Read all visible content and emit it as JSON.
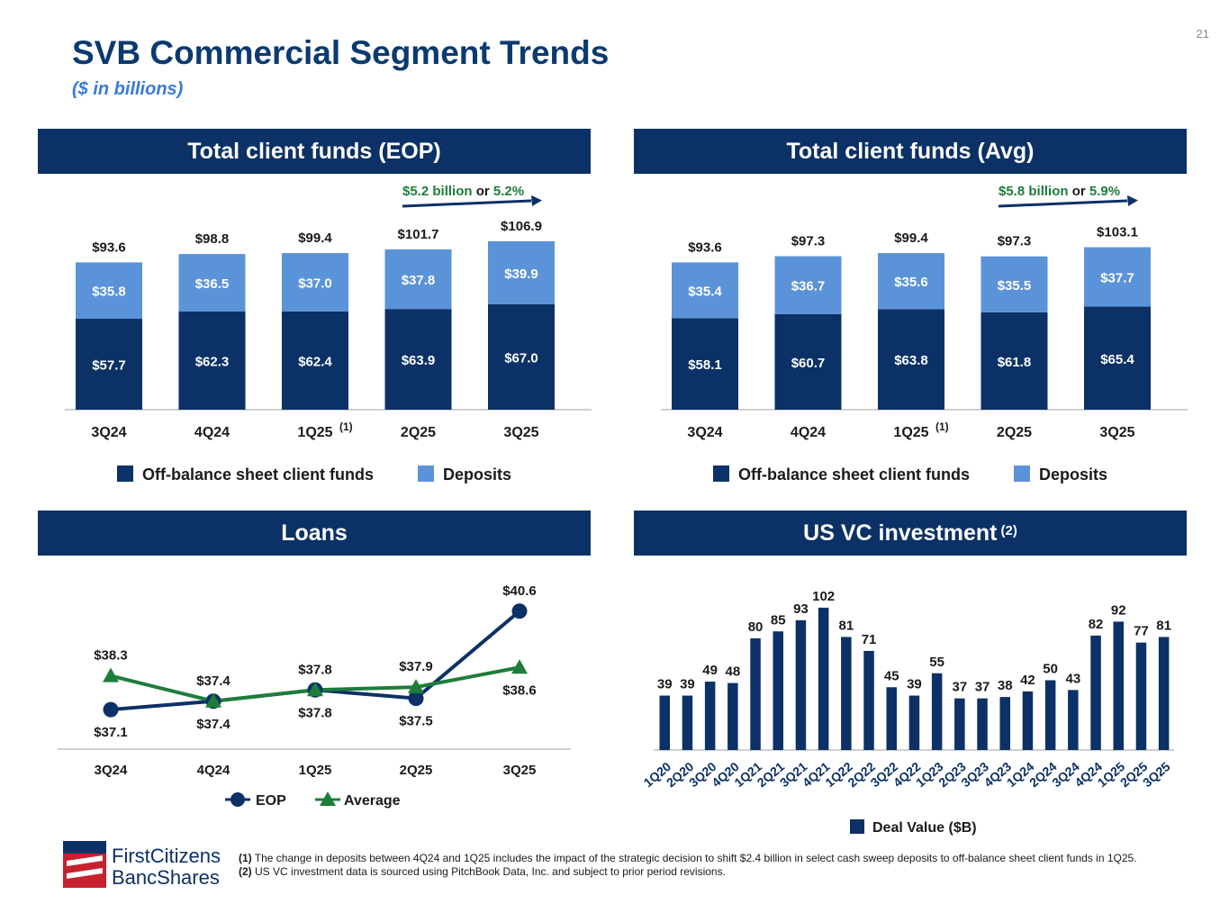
{
  "page": {
    "title": "SVB Commercial Segment Trends",
    "subtitle": "($ in billions)",
    "page_number": "21"
  },
  "colors": {
    "navy": "#0b3166",
    "light_blue": "#5b93d8",
    "green": "#1e7d3a",
    "title_blue": "#0b3a6f"
  },
  "panels": {
    "eop": {
      "title": "Total client funds (EOP)"
    },
    "avg": {
      "title": "Total client funds (Avg)"
    },
    "loans": {
      "title": "Loans"
    },
    "vc": {
      "title": "US VC investment",
      "title_note": "(2)"
    }
  },
  "chart_data": [
    {
      "id": "eop",
      "type": "bar",
      "stacked": true,
      "title": "Total client funds (EOP)",
      "categories": [
        "3Q24",
        "4Q24",
        "1Q25",
        "2Q25",
        "3Q25"
      ],
      "category_note": {
        "index": 2,
        "text": "(1)"
      },
      "series": [
        {
          "name": "Off-balance sheet client funds",
          "values": [
            57.7,
            62.3,
            62.4,
            63.9,
            67.0
          ],
          "labels": [
            "$57.7",
            "$62.3",
            "$62.4",
            "$63.9",
            "$67.0"
          ],
          "color": "#0b3166"
        },
        {
          "name": "Deposits",
          "values": [
            35.8,
            36.5,
            37.0,
            37.8,
            39.9
          ],
          "labels": [
            "$35.8",
            "$36.5",
            "$37.0",
            "$37.8",
            "$39.9"
          ],
          "color": "#5b93d8"
        }
      ],
      "totals": [
        93.6,
        98.8,
        99.4,
        101.7,
        106.9
      ],
      "total_labels": [
        "$93.6",
        "$98.8",
        "$99.4",
        "$101.7",
        "$106.9"
      ],
      "growth_annotation": {
        "amount": "$5.2 billion",
        "connector": "or",
        "percent": "5.2%"
      },
      "ylim": [
        0,
        110
      ]
    },
    {
      "id": "avg",
      "type": "bar",
      "stacked": true,
      "title": "Total client funds (Avg)",
      "categories": [
        "3Q24",
        "4Q24",
        "1Q25",
        "2Q25",
        "3Q25"
      ],
      "category_note": {
        "index": 2,
        "text": "(1)"
      },
      "series": [
        {
          "name": "Off-balance sheet client funds",
          "values": [
            58.1,
            60.7,
            63.8,
            61.8,
            65.4
          ],
          "labels": [
            "$58.1",
            "$60.7",
            "$63.8",
            "$61.8",
            "$65.4"
          ],
          "color": "#0b3166"
        },
        {
          "name": "Deposits",
          "values": [
            35.4,
            36.7,
            35.6,
            35.5,
            37.7
          ],
          "labels": [
            "$35.4",
            "$36.7",
            "$35.6",
            "$35.5",
            "$37.7"
          ],
          "color": "#5b93d8"
        }
      ],
      "totals": [
        93.6,
        97.3,
        99.4,
        97.3,
        103.1
      ],
      "total_labels": [
        "$93.6",
        "$97.3",
        "$99.4",
        "$97.3",
        "$103.1"
      ],
      "growth_annotation": {
        "amount": "$5.8 billion",
        "connector": "or",
        "percent": "5.9%"
      },
      "ylim": [
        0,
        110
      ]
    },
    {
      "id": "loans",
      "type": "line",
      "title": "Loans",
      "categories": [
        "3Q24",
        "4Q24",
        "1Q25",
        "2Q25",
        "3Q25"
      ],
      "series": [
        {
          "name": "EOP",
          "values": [
            37.1,
            37.4,
            37.8,
            37.5,
            40.6
          ],
          "labels": [
            "$37.1",
            "$37.4",
            "$37.8",
            "$37.5",
            "$40.6"
          ],
          "color": "#0b3166",
          "marker": "circle"
        },
        {
          "name": "Average",
          "values": [
            38.3,
            37.4,
            37.8,
            37.9,
            38.6
          ],
          "labels": [
            "$38.3",
            "$37.4",
            "$37.8",
            "$37.9",
            "$38.6"
          ],
          "color": "#1e7d3a",
          "marker": "triangle"
        }
      ],
      "ylim": [
        36.4,
        41.2
      ]
    },
    {
      "id": "vc",
      "type": "bar",
      "title": "US VC investment",
      "categories": [
        "1Q20",
        "2Q20",
        "3Q20",
        "4Q20",
        "1Q21",
        "2Q21",
        "3Q21",
        "4Q21",
        "1Q22",
        "2Q22",
        "3Q22",
        "4Q22",
        "1Q23",
        "2Q23",
        "3Q23",
        "4Q23",
        "1Q24",
        "2Q24",
        "3Q24",
        "4Q24",
        "1Q25",
        "2Q25",
        "3Q25"
      ],
      "series": [
        {
          "name": "Deal Value ($B)",
          "values": [
            39,
            39,
            49,
            48,
            80,
            85,
            93,
            102,
            81,
            71,
            45,
            39,
            55,
            37,
            37,
            38,
            42,
            50,
            43,
            82,
            92,
            77,
            81
          ],
          "color": "#0b3166"
        }
      ],
      "ylim": [
        0,
        110
      ]
    }
  ],
  "footnotes": [
    {
      "marker": "(1)",
      "text": "The change in deposits between 4Q24 and 1Q25 includes the impact of the strategic decision to shift $2.4 billion in select cash sweep deposits to off-balance sheet client funds in 1Q25."
    },
    {
      "marker": "(2)",
      "text": "US VC investment data is sourced using PitchBook Data, Inc. and subject to prior period revisions."
    }
  ],
  "logo": {
    "line1": "FirstCitizens",
    "line2": "BancShares"
  }
}
